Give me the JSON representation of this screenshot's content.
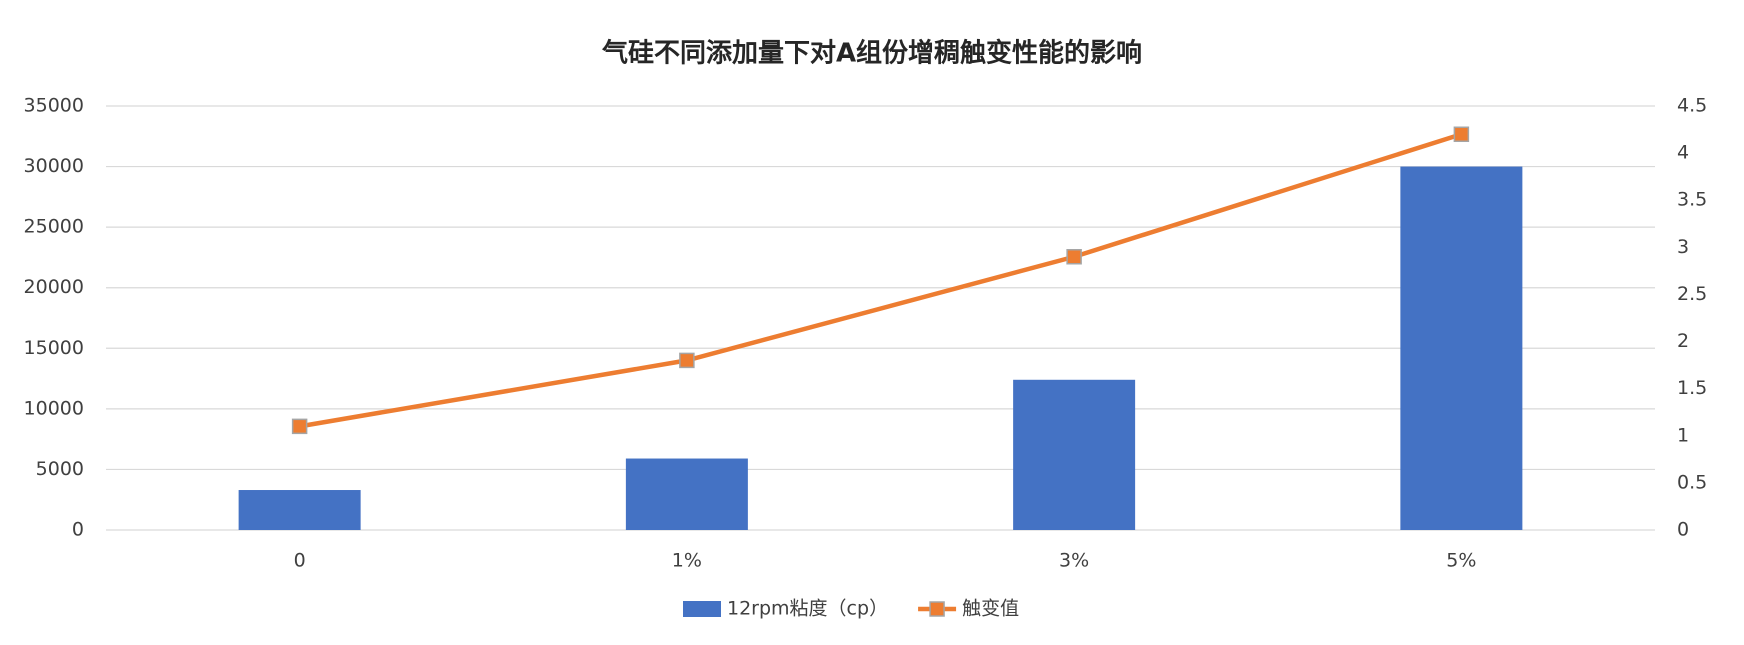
{
  "chart_data": {
    "type": "bar-line",
    "title": "气硅不同添加量下对A组份增稠触变性能的影响",
    "categories": [
      "0",
      "1%",
      "3%",
      "5%"
    ],
    "series": [
      {
        "name": "12rpm粘度（cp）",
        "color": "#4472c4",
        "type": "bar",
        "values": [
          3300,
          5900,
          12400,
          30000
        ]
      },
      {
        "name": "触变值",
        "color": "#ed7d31",
        "type": "line",
        "axis": "y2",
        "values": [
          1.1,
          1.8,
          2.9,
          4.2
        ]
      }
    ],
    "ylim": [
      0,
      35000
    ],
    "yticks": [
      0,
      5000,
      10000,
      15000,
      20000,
      25000,
      30000,
      35000
    ],
    "y2lim": [
      0,
      4.5
    ],
    "y2ticks": [
      0,
      0.5,
      1,
      1.5,
      2,
      2.5,
      3,
      3.5,
      4,
      4.5
    ],
    "grid": true,
    "legend": "bottom"
  }
}
